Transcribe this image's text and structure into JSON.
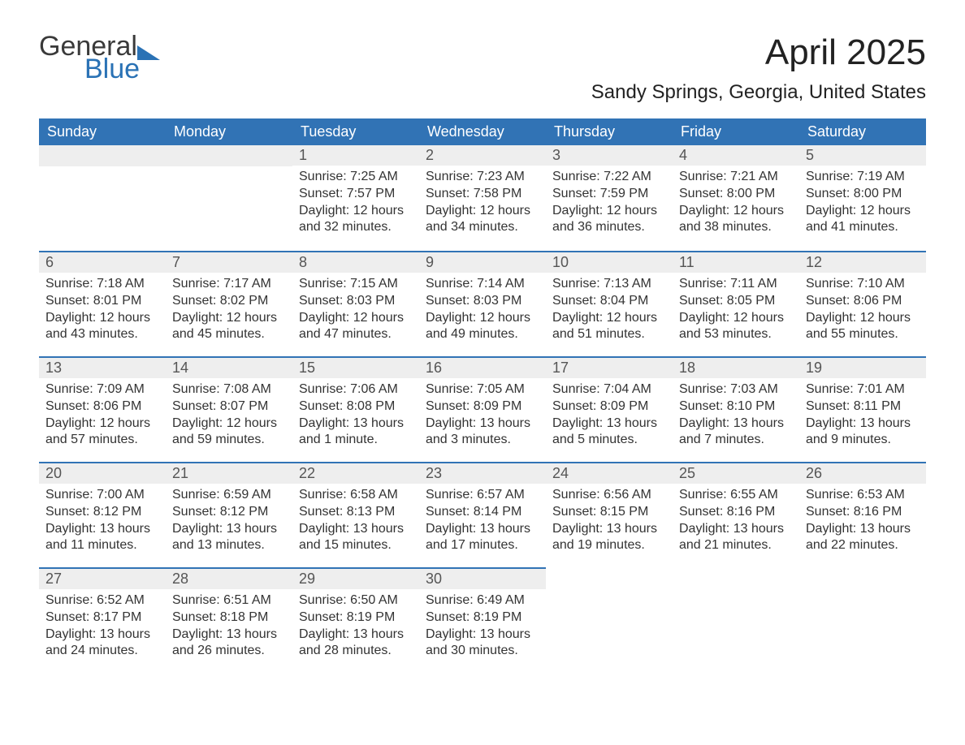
{
  "brand": {
    "part1": "General",
    "part2": "Blue"
  },
  "title": "April 2025",
  "location": "Sandy Springs, Georgia, United States",
  "colors": {
    "header_bg": "#3173b5",
    "header_text": "#ffffff",
    "daynum_bg": "#eeeeee",
    "border_top": "#3173b5",
    "body_text": "#333333",
    "brand_blue": "#2a72b5",
    "brand_gray": "#3a3a3a",
    "page_bg": "#ffffff"
  },
  "typography": {
    "title_fontsize": 44,
    "location_fontsize": 24,
    "header_fontsize": 18,
    "daynum_fontsize": 18,
    "body_fontsize": 16,
    "logo_fontsize": 34
  },
  "days_of_week": [
    "Sunday",
    "Monday",
    "Tuesday",
    "Wednesday",
    "Thursday",
    "Friday",
    "Saturday"
  ],
  "weeks": [
    [
      null,
      null,
      {
        "n": "1",
        "sunrise": "7:25 AM",
        "sunset": "7:57 PM",
        "dl": "12 hours and 32 minutes."
      },
      {
        "n": "2",
        "sunrise": "7:23 AM",
        "sunset": "7:58 PM",
        "dl": "12 hours and 34 minutes."
      },
      {
        "n": "3",
        "sunrise": "7:22 AM",
        "sunset": "7:59 PM",
        "dl": "12 hours and 36 minutes."
      },
      {
        "n": "4",
        "sunrise": "7:21 AM",
        "sunset": "8:00 PM",
        "dl": "12 hours and 38 minutes."
      },
      {
        "n": "5",
        "sunrise": "7:19 AM",
        "sunset": "8:00 PM",
        "dl": "12 hours and 41 minutes."
      }
    ],
    [
      {
        "n": "6",
        "sunrise": "7:18 AM",
        "sunset": "8:01 PM",
        "dl": "12 hours and 43 minutes."
      },
      {
        "n": "7",
        "sunrise": "7:17 AM",
        "sunset": "8:02 PM",
        "dl": "12 hours and 45 minutes."
      },
      {
        "n": "8",
        "sunrise": "7:15 AM",
        "sunset": "8:03 PM",
        "dl": "12 hours and 47 minutes."
      },
      {
        "n": "9",
        "sunrise": "7:14 AM",
        "sunset": "8:03 PM",
        "dl": "12 hours and 49 minutes."
      },
      {
        "n": "10",
        "sunrise": "7:13 AM",
        "sunset": "8:04 PM",
        "dl": "12 hours and 51 minutes."
      },
      {
        "n": "11",
        "sunrise": "7:11 AM",
        "sunset": "8:05 PM",
        "dl": "12 hours and 53 minutes."
      },
      {
        "n": "12",
        "sunrise": "7:10 AM",
        "sunset": "8:06 PM",
        "dl": "12 hours and 55 minutes."
      }
    ],
    [
      {
        "n": "13",
        "sunrise": "7:09 AM",
        "sunset": "8:06 PM",
        "dl": "12 hours and 57 minutes."
      },
      {
        "n": "14",
        "sunrise": "7:08 AM",
        "sunset": "8:07 PM",
        "dl": "12 hours and 59 minutes."
      },
      {
        "n": "15",
        "sunrise": "7:06 AM",
        "sunset": "8:08 PM",
        "dl": "13 hours and 1 minute."
      },
      {
        "n": "16",
        "sunrise": "7:05 AM",
        "sunset": "8:09 PM",
        "dl": "13 hours and 3 minutes."
      },
      {
        "n": "17",
        "sunrise": "7:04 AM",
        "sunset": "8:09 PM",
        "dl": "13 hours and 5 minutes."
      },
      {
        "n": "18",
        "sunrise": "7:03 AM",
        "sunset": "8:10 PM",
        "dl": "13 hours and 7 minutes."
      },
      {
        "n": "19",
        "sunrise": "7:01 AM",
        "sunset": "8:11 PM",
        "dl": "13 hours and 9 minutes."
      }
    ],
    [
      {
        "n": "20",
        "sunrise": "7:00 AM",
        "sunset": "8:12 PM",
        "dl": "13 hours and 11 minutes."
      },
      {
        "n": "21",
        "sunrise": "6:59 AM",
        "sunset": "8:12 PM",
        "dl": "13 hours and 13 minutes."
      },
      {
        "n": "22",
        "sunrise": "6:58 AM",
        "sunset": "8:13 PM",
        "dl": "13 hours and 15 minutes."
      },
      {
        "n": "23",
        "sunrise": "6:57 AM",
        "sunset": "8:14 PM",
        "dl": "13 hours and 17 minutes."
      },
      {
        "n": "24",
        "sunrise": "6:56 AM",
        "sunset": "8:15 PM",
        "dl": "13 hours and 19 minutes."
      },
      {
        "n": "25",
        "sunrise": "6:55 AM",
        "sunset": "8:16 PM",
        "dl": "13 hours and 21 minutes."
      },
      {
        "n": "26",
        "sunrise": "6:53 AM",
        "sunset": "8:16 PM",
        "dl": "13 hours and 22 minutes."
      }
    ],
    [
      {
        "n": "27",
        "sunrise": "6:52 AM",
        "sunset": "8:17 PM",
        "dl": "13 hours and 24 minutes."
      },
      {
        "n": "28",
        "sunrise": "6:51 AM",
        "sunset": "8:18 PM",
        "dl": "13 hours and 26 minutes."
      },
      {
        "n": "29",
        "sunrise": "6:50 AM",
        "sunset": "8:19 PM",
        "dl": "13 hours and 28 minutes."
      },
      {
        "n": "30",
        "sunrise": "6:49 AM",
        "sunset": "8:19 PM",
        "dl": "13 hours and 30 minutes."
      },
      null,
      null,
      null
    ]
  ],
  "labels": {
    "sunrise": "Sunrise: ",
    "sunset": "Sunset: ",
    "daylight": "Daylight: "
  }
}
